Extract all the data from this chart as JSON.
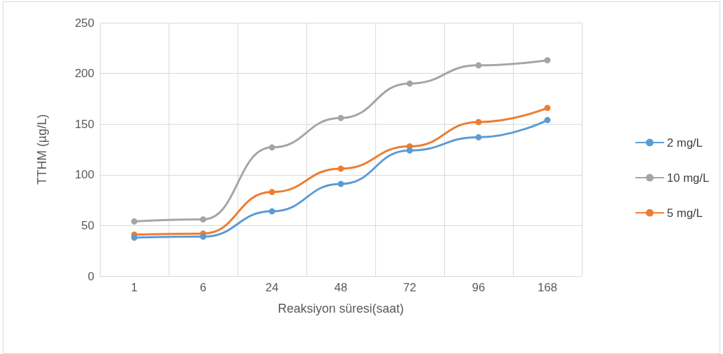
{
  "chart_data": {
    "type": "line",
    "xlabel": "Reaksiyon süresi(saat)",
    "ylabel": "TTHM (µg/L)",
    "categories": [
      "1",
      "6",
      "24",
      "48",
      "72",
      "96",
      "168"
    ],
    "series": [
      {
        "name": "2 mg/L",
        "color": "#5b9bd5",
        "values": [
          38,
          39,
          64,
          91,
          124,
          137,
          154
        ]
      },
      {
        "name": "10 mg/L",
        "color": "#a5a5a5",
        "values": [
          54,
          56,
          127,
          156,
          190,
          208,
          213
        ]
      },
      {
        "name": "5 mg/L",
        "color": "#ed7d31",
        "values": [
          41,
          42,
          83,
          106,
          128,
          152,
          166
        ]
      }
    ],
    "ylim": [
      0,
      250
    ],
    "yticks": [
      0,
      50,
      100,
      150,
      200,
      250
    ],
    "grid": true,
    "legend": "right",
    "marker": "circle",
    "line_style": "solid"
  }
}
